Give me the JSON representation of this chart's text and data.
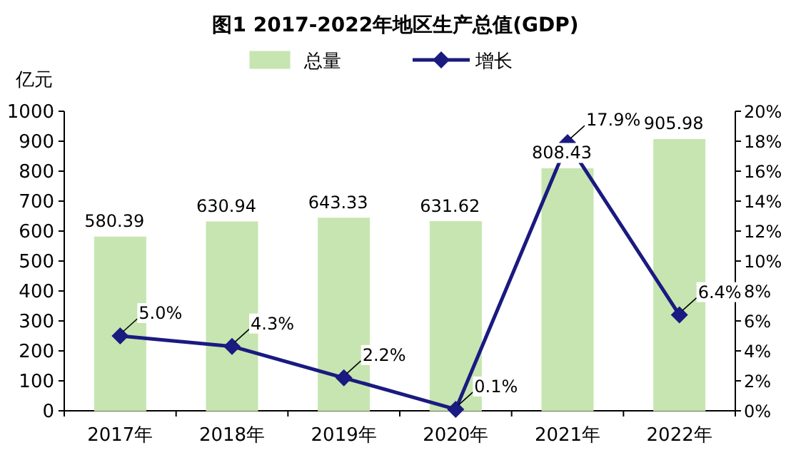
{
  "chart_data": {
    "type": "bar",
    "title": "图1  2017-2022年地区生产总值(GDP)",
    "ylabel": "亿元",
    "categories": [
      "2017年",
      "2018年",
      "2019年",
      "2020年",
      "2021年",
      "2022年"
    ],
    "series": [
      {
        "name": "总量",
        "color": "#c6e5b0",
        "values": [
          580.39,
          630.94,
          643.33,
          631.62,
          808.43,
          905.98
        ],
        "value_labels": [
          "580.39",
          "630.94",
          "643.33",
          "631.62",
          "808.43",
          "905.98"
        ]
      },
      {
        "name": "增长",
        "type": "line",
        "axis": "y2",
        "color": "#1a1a80",
        "marker": "diamond",
        "values": [
          5.0,
          4.3,
          2.2,
          0.1,
          17.9,
          6.4
        ],
        "value_labels": [
          "5.0%",
          "4.3%",
          "2.2%",
          "0.1%",
          "17.9%",
          "6.4%"
        ]
      }
    ],
    "ylim": [
      0,
      1000
    ],
    "yticks": [
      0,
      100,
      200,
      300,
      400,
      500,
      600,
      700,
      800,
      900,
      1000
    ],
    "y2lim": [
      0,
      20
    ],
    "y2ticks": [
      {
        "value": 0,
        "label": "0%"
      },
      {
        "value": 2,
        "label": "2%"
      },
      {
        "value": 4,
        "label": "4%"
      },
      {
        "value": 6,
        "label": "6%"
      },
      {
        "value": 8,
        "label": "8%"
      },
      {
        "value": 10,
        "label": "10%"
      },
      {
        "value": 12,
        "label": "12%"
      },
      {
        "value": 14,
        "label": "14%"
      },
      {
        "value": 16,
        "label": "16%"
      },
      {
        "value": 18,
        "label": "18%"
      },
      {
        "value": 20,
        "label": "20%"
      }
    ],
    "legend": "top"
  }
}
